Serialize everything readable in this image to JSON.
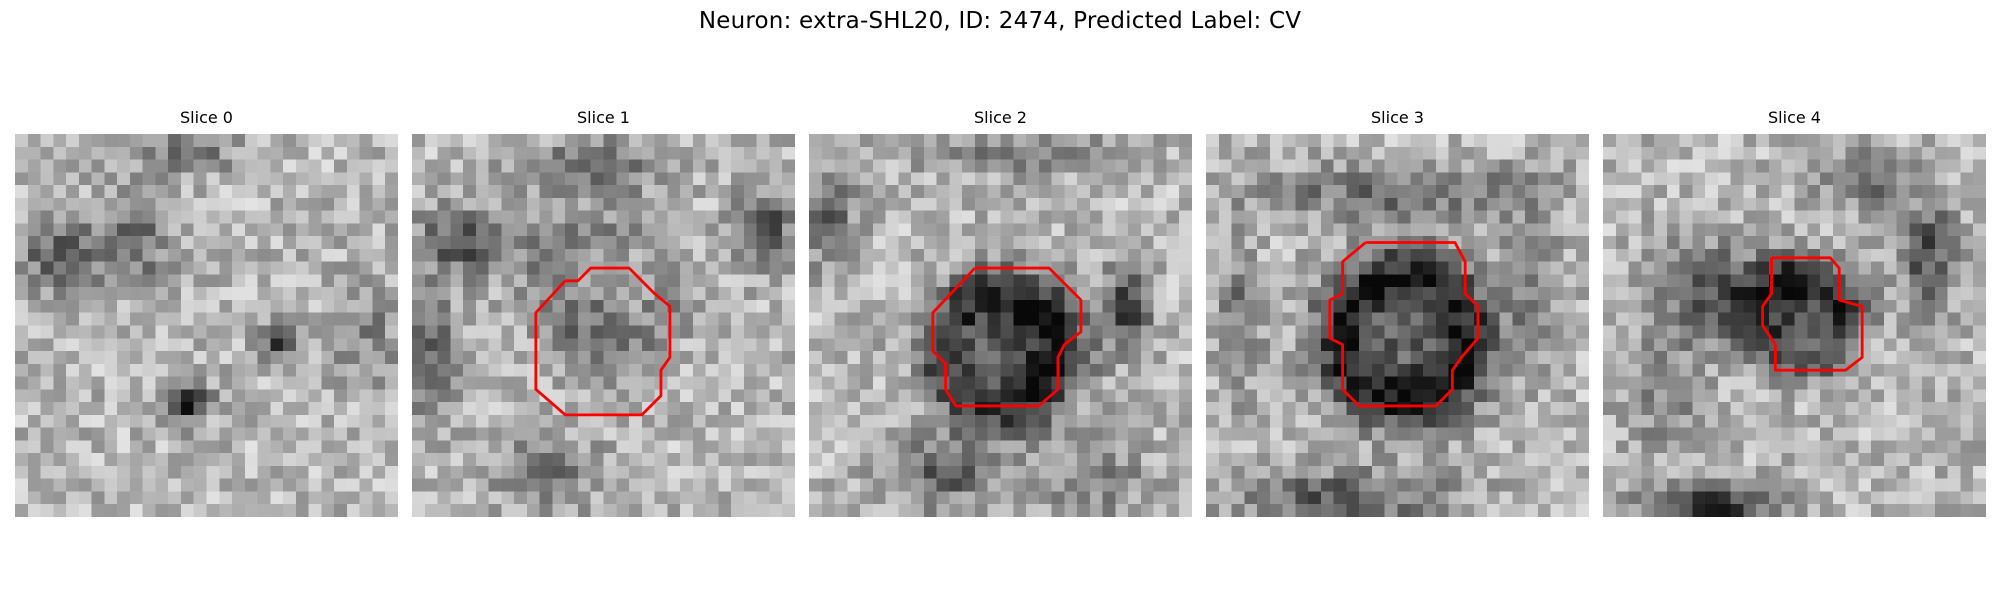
{
  "figure": {
    "title": "Neuron: extra-SHL20, ID: 2474, Predicted Label: CV"
  },
  "colors": {
    "background": "#ffffff",
    "contour": "#ff0000",
    "colormap": "grayscale"
  },
  "slices": [
    {
      "title": "Slice 0",
      "has_contour": false
    },
    {
      "title": "Slice 1",
      "has_contour": true
    },
    {
      "title": "Slice 2",
      "has_contour": true
    },
    {
      "title": "Slice 3",
      "has_contour": true
    },
    {
      "title": "Slice 4",
      "has_contour": true
    }
  ]
}
